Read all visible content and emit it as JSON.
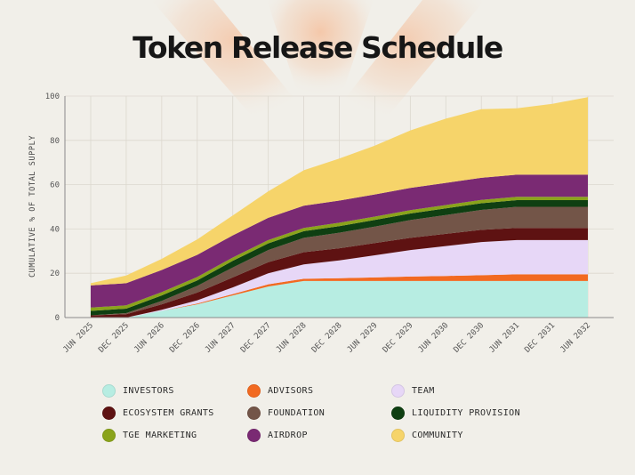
{
  "title": "Token Release Schedule",
  "colors": {
    "background": "#f1efe9",
    "glow": "#f5a673",
    "grid": "#dcd8cf",
    "axis": "#8a8a8a"
  },
  "chart_data": {
    "type": "area",
    "stacked": true,
    "title": "Token Release Schedule",
    "ylabel": "CUMULATIVE % OF TOTAL SUPPLY",
    "xlabel": "",
    "ylim": [
      0,
      100
    ],
    "yticks": [
      0,
      20,
      40,
      60,
      80,
      100
    ],
    "grid": true,
    "legend_position": "bottom",
    "x": [
      "JUN 2025",
      "DEC 2025",
      "JUN 2026",
      "DEC 2026",
      "JUN 2027",
      "DEC 2027",
      "JUN 2028",
      "DEC 2028",
      "JUN 2029",
      "DEC 2029",
      "JUN 2030",
      "DEC 2030",
      "JUN 2031",
      "DEC 2031",
      "JUN 2032"
    ],
    "series": [
      {
        "name": "INVESTORS",
        "color": "#b7ede2",
        "values": [
          0,
          0,
          3,
          6,
          10,
          14,
          16.5,
          16.5,
          16.5,
          16.5,
          16.5,
          16.5,
          16.5,
          16.5,
          16.5
        ]
      },
      {
        "name": "ADVISORS",
        "color": "#f26a21",
        "values": [
          0,
          0,
          0,
          0.3,
          0.6,
          1,
          1,
          1.3,
          1.6,
          2,
          2.3,
          2.6,
          3,
          3,
          3
        ]
      },
      {
        "name": "TEAM",
        "color": "#e7d7f7",
        "values": [
          0,
          0,
          0.5,
          1.5,
          3,
          5,
          6.5,
          8,
          10,
          12,
          13.5,
          15,
          15.5,
          15.5,
          15.5
        ]
      },
      {
        "name": "ECOSYSTEM GRANTS",
        "color": "#5e1212",
        "values": [
          1,
          1.5,
          2.5,
          3.5,
          4.5,
          5,
          5.5,
          5.5,
          5.5,
          5.5,
          5.5,
          5.5,
          5.5,
          5.5,
          5.5
        ]
      },
      {
        "name": "FOUNDATION",
        "color": "#735548",
        "values": [
          0,
          0.5,
          1.5,
          3,
          4.5,
          5.5,
          6.5,
          7,
          7.5,
          8,
          8.5,
          9,
          9.5,
          9.5,
          9.5
        ]
      },
      {
        "name": "LIQUIDITY PROVISION",
        "color": "#0f3f12",
        "values": [
          2,
          2,
          2.5,
          2.5,
          3,
          3,
          3,
          3,
          3,
          3,
          3,
          3,
          3,
          3,
          3
        ]
      },
      {
        "name": "TGE MARKETING",
        "color": "#8aa31b",
        "values": [
          1.5,
          1.5,
          1.5,
          1.5,
          1.5,
          1.5,
          1.5,
          1.5,
          1.5,
          1.5,
          1.5,
          1.5,
          1.5,
          1.5,
          1.5
        ]
      },
      {
        "name": "AIRDROP",
        "color": "#7a2a73",
        "values": [
          10,
          10,
          10,
          10,
          10,
          10,
          10,
          10,
          10,
          10,
          10,
          10,
          10,
          10,
          10
        ]
      },
      {
        "name": "COMMUNITY",
        "color": "#f6d46a",
        "values": [
          1,
          3.5,
          5,
          7,
          9,
          12,
          16,
          19,
          22,
          26,
          29,
          31,
          30,
          32,
          35
        ]
      }
    ]
  }
}
